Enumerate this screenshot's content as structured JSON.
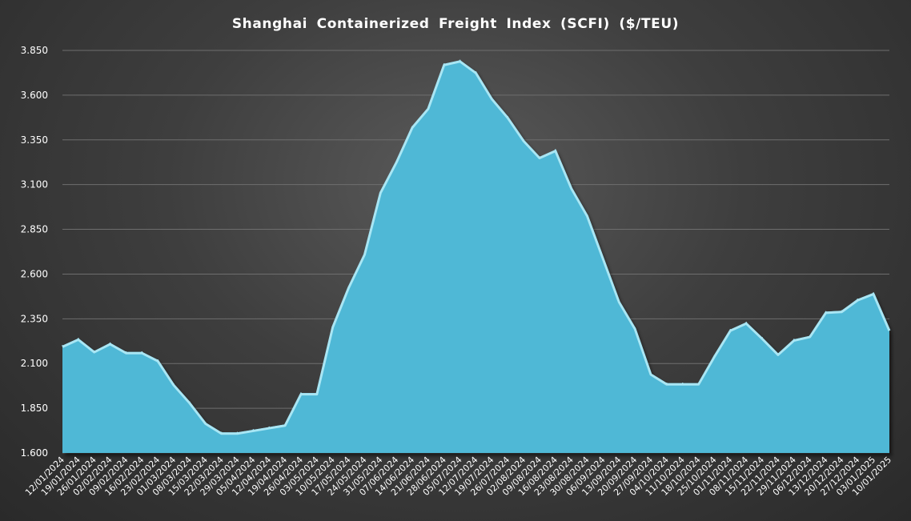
{
  "chart_data": {
    "type": "area",
    "title": "Shanghai Containerized Freight Index (SCFI) ($/TEU)",
    "xlabel": "",
    "ylabel": "",
    "ylim": [
      1600,
      3850
    ],
    "yticks": [
      1600,
      1850,
      2100,
      2350,
      2600,
      2850,
      3100,
      3350,
      3600,
      3850
    ],
    "ytick_labels": [
      "1.600",
      "1.850",
      "2.100",
      "2.350",
      "2.600",
      "2.850",
      "3.100",
      "3.350",
      "3.600",
      "3.850"
    ],
    "grid": true,
    "legend": "none",
    "fill_color": "#4fb8d6",
    "x_tick_labels": [
      "12/01/2024",
      "19/01/2024",
      "26/01/2024",
      "02/02/2024",
      "09/02/2024",
      "16/02/2024",
      "23/02/2024",
      "01/03/2024",
      "08/03/2024",
      "15/03/2024",
      "22/03/2024",
      "29/03/2024",
      "05/04/2024",
      "12/04/2024",
      "19/04/2024",
      "26/04/2024",
      "03/05/2024",
      "10/05/2024",
      "17/05/2024",
      "24/05/2024",
      "31/05/2024",
      "07/06/2024",
      "14/06/2024",
      "21/06/2024",
      "28/06/2024",
      "05/07/2024",
      "12/07/2024",
      "19/07/2024",
      "26/07/2024",
      "02/08/2024",
      "09/08/2024",
      "16/08/2024",
      "23/08/2024",
      "30/08/2024",
      "06/09/2024",
      "13/09/2024",
      "20/09/2024",
      "27/09/2024",
      "04/10/2024",
      "11/10/2024",
      "18/10/2024",
      "25/10/2024",
      "01/11/2024",
      "08/11/2024",
      "15/11/2024",
      "22/11/2024",
      "29/11/2024",
      "06/12/2024",
      "13/12/2024",
      "20/12/2024",
      "27/12/2024",
      "03/01/2025",
      "10/01/2025"
    ],
    "x": [
      "2024-01-12",
      "2024-01-19",
      "2024-01-26",
      "2024-02-02",
      "2024-02-09",
      "2024-02-16",
      "2024-02-23",
      "2024-03-01",
      "2024-03-08",
      "2024-03-15",
      "2024-03-22",
      "2024-03-29",
      "2024-04-05",
      "2024-04-12",
      "2024-04-19",
      "2024-04-26",
      "2024-05-03",
      "2024-05-10",
      "2024-05-17",
      "2024-05-24",
      "2024-05-31",
      "2024-06-07",
      "2024-06-14",
      "2024-06-21",
      "2024-06-28",
      "2024-07-05",
      "2024-07-12",
      "2024-07-19",
      "2024-07-26",
      "2024-08-02",
      "2024-08-09",
      "2024-08-16",
      "2024-08-23",
      "2024-08-30",
      "2024-09-06",
      "2024-09-13",
      "2024-09-20",
      "2024-09-27",
      "2024-10-04",
      "2024-10-11",
      "2024-10-18",
      "2024-10-25",
      "2024-11-01",
      "2024-11-08",
      "2024-11-15",
      "2024-11-22",
      "2024-11-29",
      "2024-12-06",
      "2024-12-13",
      "2024-12-20",
      "2024-12-27",
      "2025-01-03",
      "2025-01-10"
    ],
    "values": [
      2200,
      2240,
      2170,
      2215,
      2165,
      2165,
      2120,
      1985,
      1885,
      1770,
      1715,
      1715,
      1730,
      1745,
      1760,
      1935,
      1935,
      2310,
      2530,
      2715,
      3060,
      3230,
      3425,
      3530,
      3775,
      3795,
      3730,
      3585,
      3480,
      3350,
      3255,
      3295,
      3085,
      2930,
      2690,
      2450,
      2300,
      2045,
      1990,
      1990,
      1990,
      2145,
      2290,
      2330,
      2245,
      2155,
      2235,
      2255,
      2390,
      2395,
      2460,
      2495,
      2290
    ]
  }
}
